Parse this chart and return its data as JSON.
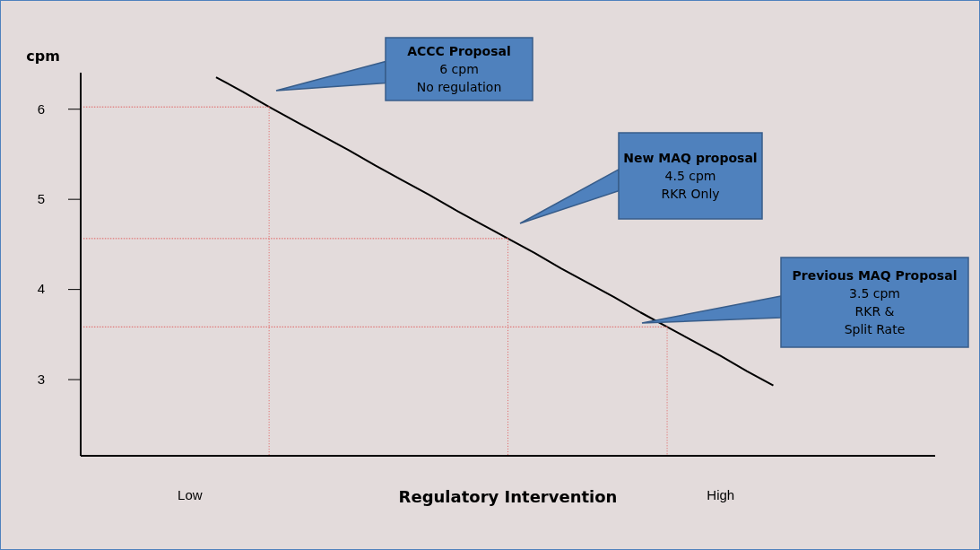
{
  "chart_data": {
    "type": "line",
    "xlabel": "Regulatory Intervention",
    "ylabel": "cpm",
    "categories": [
      null,
      null,
      null,
      null,
      "Low",
      null,
      null,
      null,
      null,
      null,
      null,
      null,
      null,
      null,
      null,
      null,
      null,
      null,
      null,
      null,
      null,
      null,
      null,
      null,
      "High",
      null,
      null,
      null,
      null,
      null,
      null,
      null,
      null
    ],
    "series": [
      {
        "color": "#000000",
        "values": [
          null,
          null,
          null,
          null,
          null,
          6.35,
          6.19,
          6.02,
          5.86,
          5.7,
          5.54,
          5.37,
          5.21,
          5.05,
          4.88,
          4.72,
          4.56,
          4.4,
          4.23,
          4.07,
          3.91,
          3.74,
          3.58,
          3.42,
          3.26,
          3.09,
          2.93,
          null,
          null,
          null,
          null,
          null,
          null
        ]
      },
      {
        "color": "#e06060",
        "line_style": "dotted",
        "values": [
          6.02,
          6.02,
          6.02,
          6.02,
          6.02,
          6.02,
          6.02,
          6.02,
          null,
          null,
          null,
          null,
          null,
          null,
          null,
          null,
          null,
          null,
          null,
          null,
          null,
          null,
          null,
          null,
          null,
          null,
          null,
          null,
          null,
          null,
          null,
          null,
          null
        ]
      },
      {
        "color": "#e06060",
        "line_style": "dotted",
        "values": [
          4.56,
          4.56,
          4.56,
          4.56,
          4.56,
          4.56,
          4.56,
          4.56,
          4.56,
          4.56,
          4.56,
          4.56,
          4.56,
          4.56,
          4.56,
          4.56,
          4.56,
          null,
          null,
          null,
          null,
          null,
          null,
          null,
          null,
          null,
          null,
          null,
          null,
          null,
          null,
          null,
          null
        ]
      },
      {
        "color": "#e06060",
        "line_style": "dotted",
        "values": [
          3.58,
          3.58,
          3.58,
          3.58,
          3.58,
          3.58,
          3.58,
          3.58,
          3.58,
          3.58,
          3.58,
          3.58,
          3.58,
          3.58,
          3.58,
          3.58,
          3.58,
          3.58,
          3.58,
          3.58,
          3.58,
          3.58,
          3.58,
          null,
          null,
          null,
          null,
          null,
          null,
          null,
          null,
          null,
          null
        ]
      }
    ],
    "ylim": [
      2.15,
      6.4
    ],
    "yticks": [
      3,
      4,
      5,
      6
    ],
    "grid": false,
    "marker": "none",
    "line_style": "solid",
    "annotations": [
      "ACCC Proposal\n6 cpm\nNo regulation",
      "New MAQ proposal\n4.5 cpm\nRKR Only",
      "Previous MAQ Proposal\n3.5 cpm\nRKR &\nSplit Rate"
    ]
  }
}
